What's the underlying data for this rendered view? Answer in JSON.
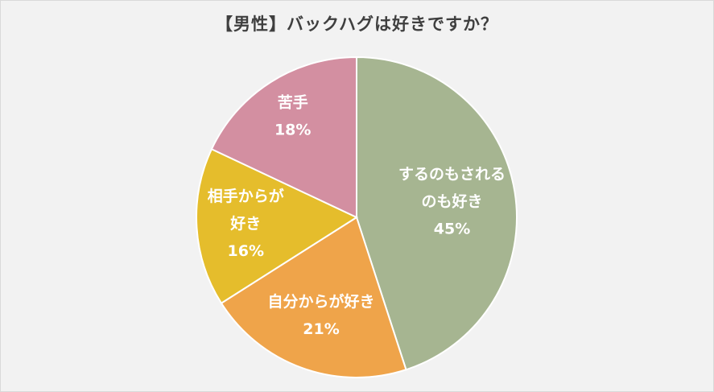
{
  "title": "【男性】バックハグは好きですか？",
  "chart_data": {
    "type": "pie",
    "title": "【男性】バックハグは好きですか？",
    "start_angle_deg": 0,
    "direction": "clockwise",
    "slices": [
      {
        "label_lines": [
          "するのもされる",
          "のも好き"
        ],
        "pct_label": "45%",
        "value": 45,
        "color": "#a6b591"
      },
      {
        "label_lines": [
          "自分からが好き"
        ],
        "pct_label": "21%",
        "value": 21,
        "color": "#efa44a"
      },
      {
        "label_lines": [
          "相手からが",
          "好き"
        ],
        "pct_label": "16%",
        "value": 16,
        "color": "#e5bd2c"
      },
      {
        "label_lines": [
          "苦手"
        ],
        "pct_label": "18%",
        "value": 18,
        "color": "#d38fa1"
      }
    ]
  }
}
